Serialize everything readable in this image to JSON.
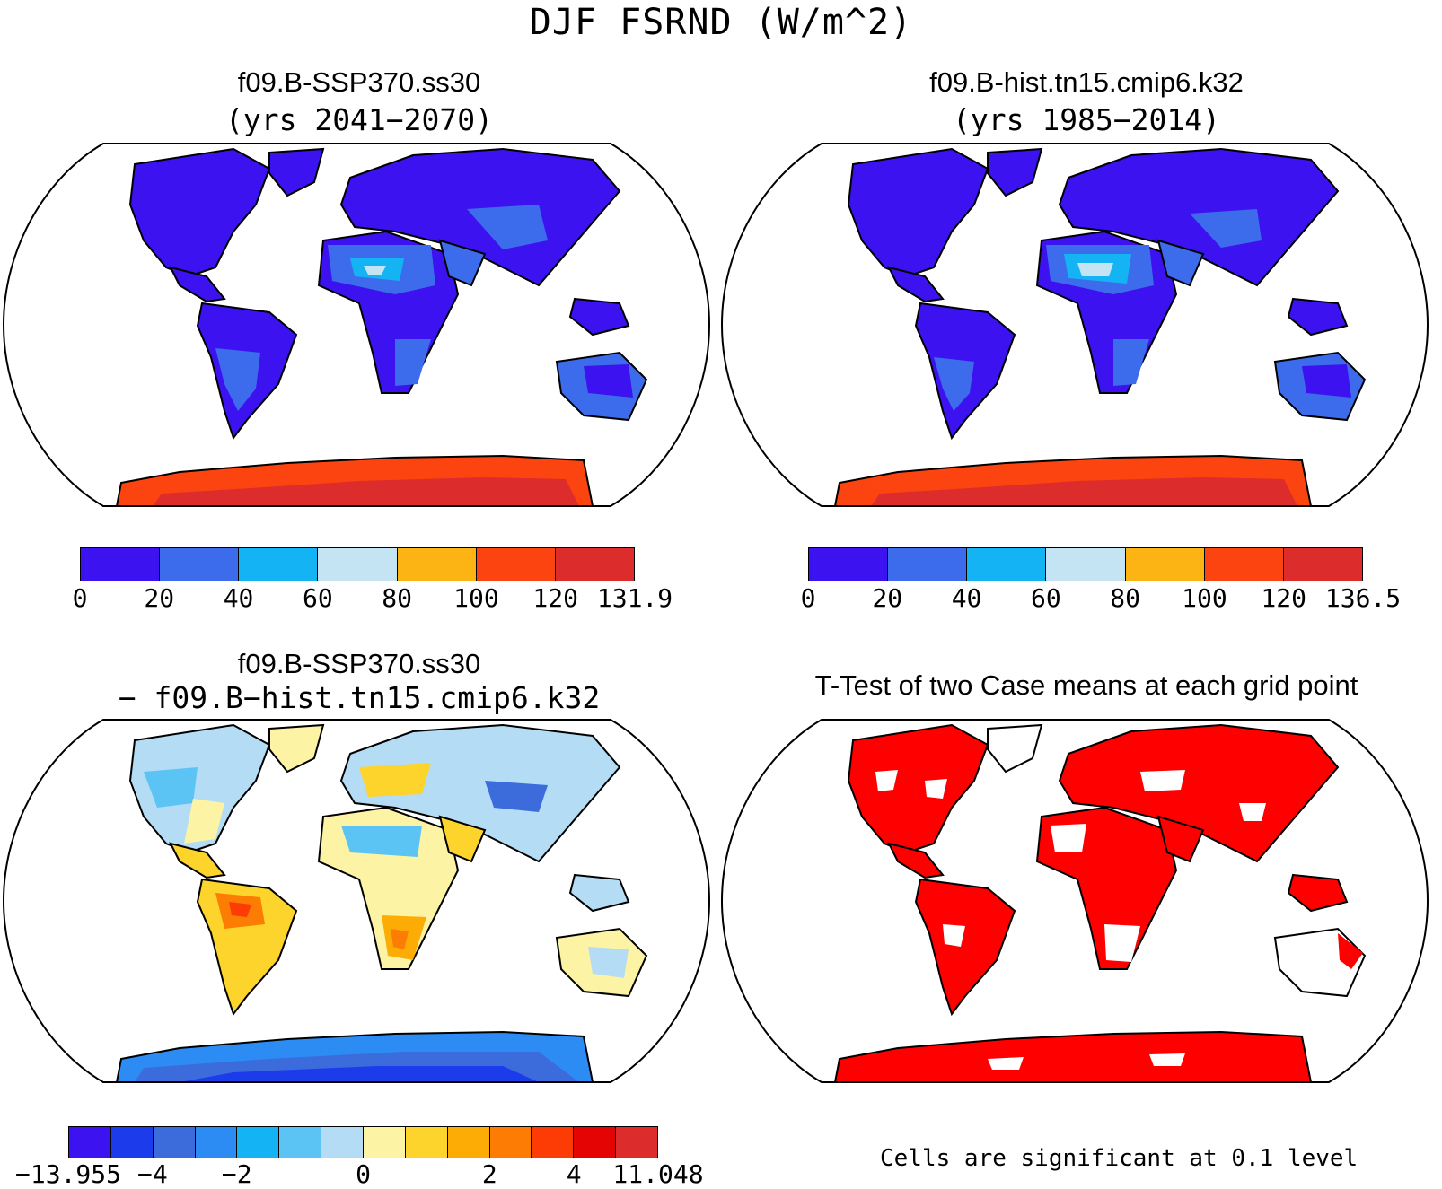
{
  "figure": {
    "title": "DJF FSRND (W/m^2)"
  },
  "panels": {
    "top_left": {
      "title": "f09.B-SSP370.ss30",
      "subtitle": "(yrs 2041−2070)",
      "colorbar": {
        "labels": [
          "0",
          "20",
          "40",
          "60",
          "80",
          "100",
          "120",
          "131.9"
        ],
        "colors": [
          "#3c12f0",
          "#3c6cec",
          "#14b4f4",
          "#c4e4f4",
          "#fcb414",
          "#fc4410",
          "#dc2c2c"
        ]
      }
    },
    "top_right": {
      "title": "f09.B-hist.tn15.cmip6.k32",
      "subtitle": "(yrs 1985−2014)",
      "colorbar": {
        "labels": [
          "0",
          "20",
          "40",
          "60",
          "80",
          "100",
          "120",
          "136.5"
        ],
        "colors": [
          "#3c12f0",
          "#3c6cec",
          "#14b4f4",
          "#c4e4f4",
          "#fcb414",
          "#fc4410",
          "#dc2c2c"
        ]
      }
    },
    "bottom_left": {
      "title": "f09.B-SSP370.ss30",
      "subtitle": "− f09.B−hist.tn15.cmip6.k32",
      "colorbar": {
        "labels": [
          "−13.955",
          "−4",
          "−2",
          "0",
          "2",
          "4",
          "11.048"
        ],
        "colors": [
          "#3c12f0",
          "#1c3cec",
          "#3c6cdc",
          "#2c8cf4",
          "#14b4f4",
          "#5cc4f4",
          "#b4dcf4",
          "#fcf4a4",
          "#fcd42c",
          "#fcac04",
          "#fc7c04",
          "#fc3c04",
          "#e40404",
          "#dc2c2c"
        ]
      }
    },
    "bottom_right": {
      "title": "T-Test of two Case means at each grid point",
      "note": "Cells are significant at 0.1 level"
    }
  },
  "colors": {
    "land_top_base": "#3c12f0",
    "land_diff_base": "#b4dcf4",
    "significant": "#ff0000"
  }
}
